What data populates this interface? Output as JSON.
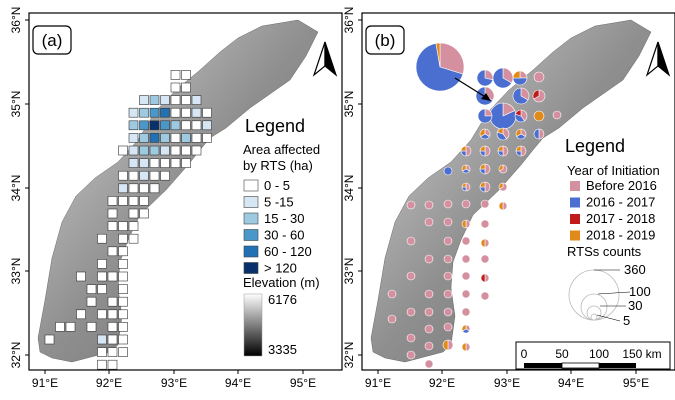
{
  "panels": [
    {
      "id": "a",
      "label": "(a)",
      "x_ticks": [
        "91°E",
        "92°E",
        "93°E",
        "94°E",
        "95°E"
      ],
      "y_ticks": [
        "36°N",
        "35°N",
        "34°N",
        "33°N",
        "32°N"
      ],
      "legend": {
        "title": "Legend",
        "subtitle_line1": "Area affected",
        "subtitle_line2": "by RTS (ha)",
        "classes": [
          {
            "label": "0 - 5",
            "color": "#ffffff"
          },
          {
            "label": "5 -15",
            "color": "#d6e6f4"
          },
          {
            "label": "15 - 30",
            "color": "#9ecae1"
          },
          {
            "label": "30 - 60",
            "color": "#4a98c9"
          },
          {
            "label": "60 - 120",
            "color": "#2171b5"
          },
          {
            "label": "> 120",
            "color": "#08306b"
          }
        ],
        "elevation_title": "Elevation (m)",
        "elevation_max": "6176",
        "elevation_min": "3335"
      }
    },
    {
      "id": "b",
      "label": "(b)",
      "x_ticks": [
        "91°E",
        "92°E",
        "93°E",
        "94°E",
        "95°E"
      ],
      "y_ticks": [
        "36°N",
        "35°N",
        "34°N",
        "33°N",
        "32°N"
      ],
      "legend": {
        "title": "Legend",
        "subtitle": "Year of Initiation",
        "classes": [
          {
            "label": "Before 2016",
            "color": "#d4909f"
          },
          {
            "label": "2016 - 2017",
            "color": "#4a6fd0"
          },
          {
            "label": "2017 - 2018",
            "color": "#c01a1a"
          },
          {
            "label": "2018 - 2019",
            "color": "#e08a1a"
          }
        ],
        "counts_title": "RTSs counts",
        "counts": [
          "360",
          "100",
          "30",
          "5"
        ]
      },
      "scalebar": {
        "ticks": [
          "0",
          "50",
          "100",
          "150 km"
        ]
      }
    }
  ]
}
